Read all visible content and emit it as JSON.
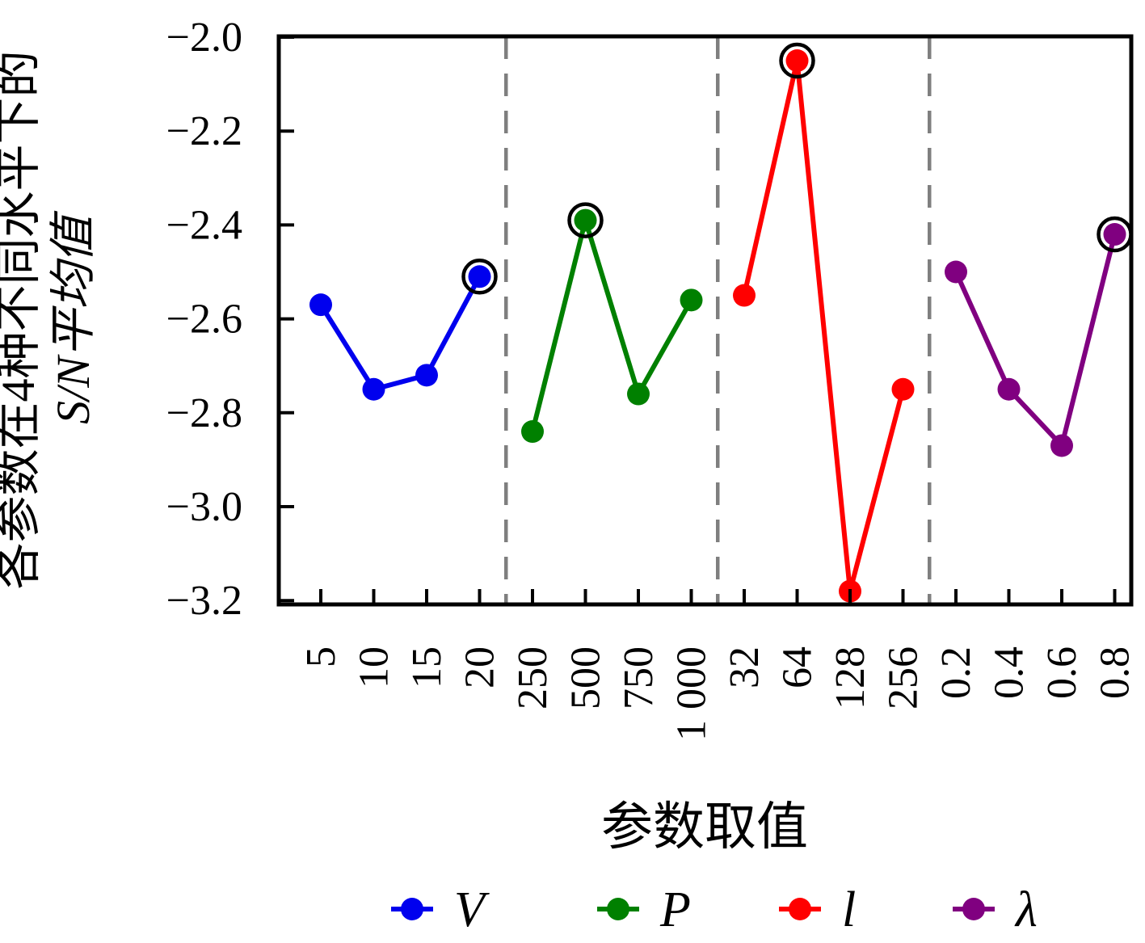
{
  "figure": {
    "background": "#ffffff",
    "frame_color": "#000000"
  },
  "chart_data": {
    "type": "line",
    "title": "",
    "xlabel": "参数取值",
    "ylabel_lines": [
      "各参数在4种不同水平下的",
      "S/N平均值"
    ],
    "ylabel_plain": "各参数在4种不同水平下的S/N平均值",
    "ylim": [
      -3.21,
      -2.0
    ],
    "yticks": [
      -2.0,
      -2.2,
      -2.4,
      -2.6,
      -2.8,
      -3.0,
      -3.2
    ],
    "ytick_labels": [
      "−2.0",
      "−2.2",
      "−2.4",
      "−2.6",
      "−2.8",
      "−3.0",
      "−3.2"
    ],
    "xtick_labels": [
      "5",
      "10",
      "15",
      "20",
      "250",
      "500",
      "750",
      "1 000",
      "32",
      "64",
      "128",
      "256",
      "0.2",
      "0.4",
      "0.6",
      "0.8"
    ],
    "grid": false,
    "legend_position": "bottom",
    "series": [
      {
        "name": "V",
        "color": "#0000EE",
        "categories": [
          "5",
          "10",
          "15",
          "20"
        ],
        "values": [
          -2.57,
          -2.75,
          -2.72,
          -2.51
        ],
        "highlighted_index": 3,
        "highlighted_category": "20"
      },
      {
        "name": "P",
        "color": "#008000",
        "categories": [
          "250",
          "500",
          "750",
          "1 000"
        ],
        "values": [
          -2.84,
          -2.39,
          -2.76,
          -2.56
        ],
        "highlighted_index": 1,
        "highlighted_category": "500"
      },
      {
        "name": "l",
        "color": "#FF0000",
        "categories": [
          "32",
          "64",
          "128",
          "256"
        ],
        "values": [
          -2.55,
          -2.05,
          -3.18,
          -2.75
        ],
        "highlighted_index": 1,
        "highlighted_category": "64"
      },
      {
        "name": "λ",
        "color": "#800080",
        "categories": [
          "0.2",
          "0.4",
          "0.6",
          "0.8"
        ],
        "values": [
          -2.5,
          -2.75,
          -2.87,
          -2.42
        ],
        "highlighted_index": 3,
        "highlighted_category": "0.8"
      }
    ],
    "separator_style": {
      "color": "#7f7f7f",
      "dash": [
        28,
        18
      ],
      "width": 4.5
    },
    "highlight_ring_color": "#000000",
    "legend": {
      "labels": [
        "V",
        "P",
        "l",
        "λ"
      ]
    }
  }
}
